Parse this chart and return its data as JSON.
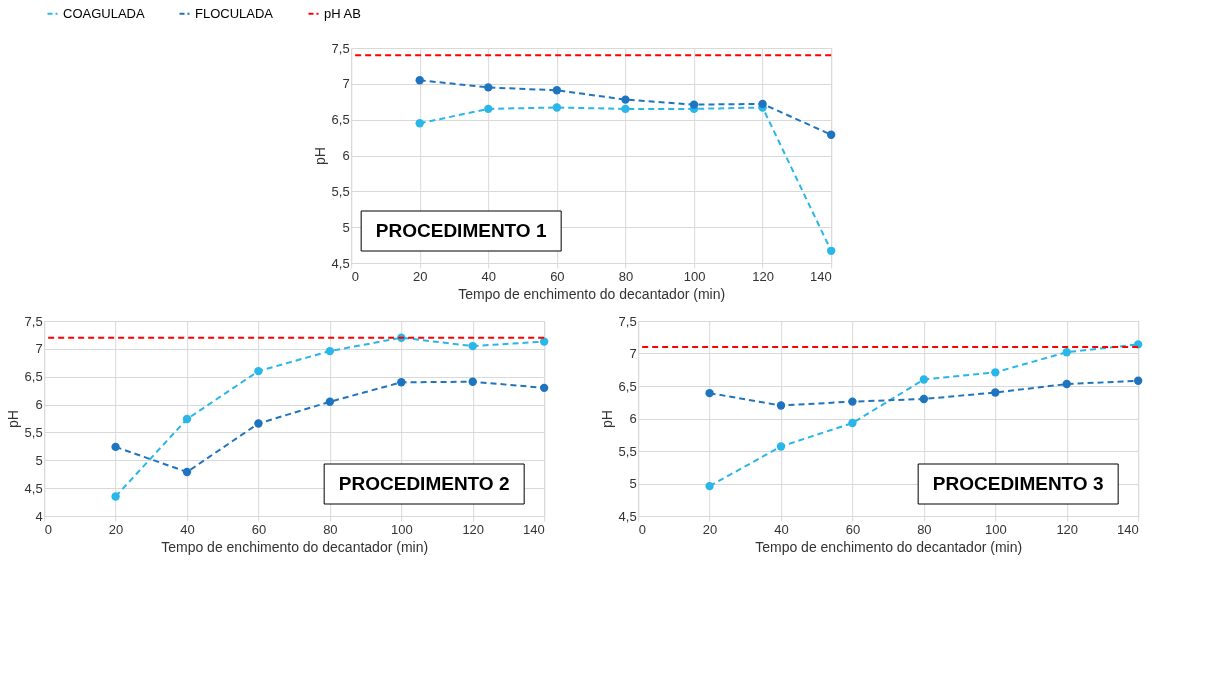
{
  "chart_data": [
    {
      "type": "line",
      "xlabel": "Tempo de enchimento do decantador (min)",
      "ylabel": "pH",
      "annotations": [
        "PROCEDIMENTO 1"
      ],
      "x": [
        20,
        40,
        60,
        80,
        100,
        120,
        140
      ],
      "xlim": [
        0,
        140
      ],
      "xticks": [
        0,
        20,
        40,
        60,
        80,
        100,
        120,
        140
      ],
      "ylim": [
        4.5,
        7.5
      ],
      "yticks": [
        {
          "value": 4.5,
          "label": "4,5"
        },
        5,
        {
          "value": 5.5,
          "label": "5,5"
        },
        6,
        {
          "value": 6.5,
          "label": "6,5"
        },
        7,
        {
          "value": 7.5,
          "label": "7,5"
        }
      ],
      "grid": true,
      "legend": "top",
      "marker": "circle",
      "line_style": "dashed",
      "series": [
        {
          "name": "COAGULADA",
          "color": "#29b6e8",
          "values": [
            6.45,
            6.65,
            6.67,
            6.65,
            6.65,
            6.67,
            4.67
          ]
        },
        {
          "name": "FLOCULADA",
          "color": "#1f74c0",
          "values": [
            7.05,
            6.95,
            6.91,
            6.78,
            6.71,
            6.72,
            6.29
          ]
        }
      ],
      "ref_lines": [
        {
          "axis": "y",
          "value": 7.4,
          "label": "pH AB",
          "color": "#ff0000",
          "line_style": "dashed"
        }
      ]
    },
    {
      "type": "line",
      "xlabel": "Tempo de enchimento do decantador (min)",
      "ylabel": "pH",
      "annotations": [
        "PROCEDIMENTO 2"
      ],
      "x": [
        20,
        40,
        60,
        80,
        100,
        120,
        140
      ],
      "xlim": [
        0,
        140
      ],
      "xticks": [
        0,
        20,
        40,
        60,
        80,
        100,
        120,
        140
      ],
      "ylim": [
        4,
        7.5
      ],
      "yticks": [
        4,
        {
          "value": 4.5,
          "label": "4,5"
        },
        5,
        {
          "value": 5.5,
          "label": "5,5"
        },
        6,
        {
          "value": 6.5,
          "label": "6,5"
        },
        7,
        {
          "value": 7.5,
          "label": "7,5"
        }
      ],
      "grid": true,
      "marker": "circle",
      "line_style": "dashed",
      "series": [
        {
          "color": "#29b6e8",
          "values": [
            4.35,
            5.74,
            6.6,
            6.96,
            7.2,
            7.05,
            7.13
          ]
        },
        {
          "color": "#1f74c0",
          "values": [
            5.24,
            4.79,
            5.66,
            6.05,
            6.4,
            6.41,
            6.3
          ]
        }
      ],
      "ref_lines": [
        {
          "axis": "y",
          "value": 7.2,
          "color": "#ff0000",
          "line_style": "dashed"
        }
      ]
    },
    {
      "type": "line",
      "xlabel": "Tempo de enchimento do decantador (min)",
      "ylabel": "pH",
      "annotations": [
        "PROCEDIMENTO 3"
      ],
      "x": [
        20,
        40,
        60,
        80,
        100,
        120,
        140
      ],
      "xlim": [
        0,
        140
      ],
      "xticks": [
        0,
        20,
        40,
        60,
        80,
        100,
        120,
        140
      ],
      "ylim": [
        4.5,
        7.5
      ],
      "yticks": [
        {
          "value": 4.5,
          "label": "4,5"
        },
        5,
        {
          "value": 5.5,
          "label": "5,5"
        },
        6,
        {
          "value": 6.5,
          "label": "6,5"
        },
        7,
        {
          "value": 7.5,
          "label": "7,5"
        }
      ],
      "grid": true,
      "marker": "circle",
      "line_style": "dashed",
      "series": [
        {
          "color": "#29b6e8",
          "values": [
            4.96,
            5.57,
            5.93,
            6.6,
            6.71,
            7.02,
            7.14
          ]
        },
        {
          "color": "#1f74c0",
          "values": [
            6.39,
            6.2,
            6.26,
            6.3,
            6.4,
            6.53,
            6.58
          ]
        }
      ],
      "ref_lines": [
        {
          "axis": "y",
          "value": 7.1,
          "color": "#ff0000",
          "line_style": "dashed"
        }
      ]
    }
  ]
}
